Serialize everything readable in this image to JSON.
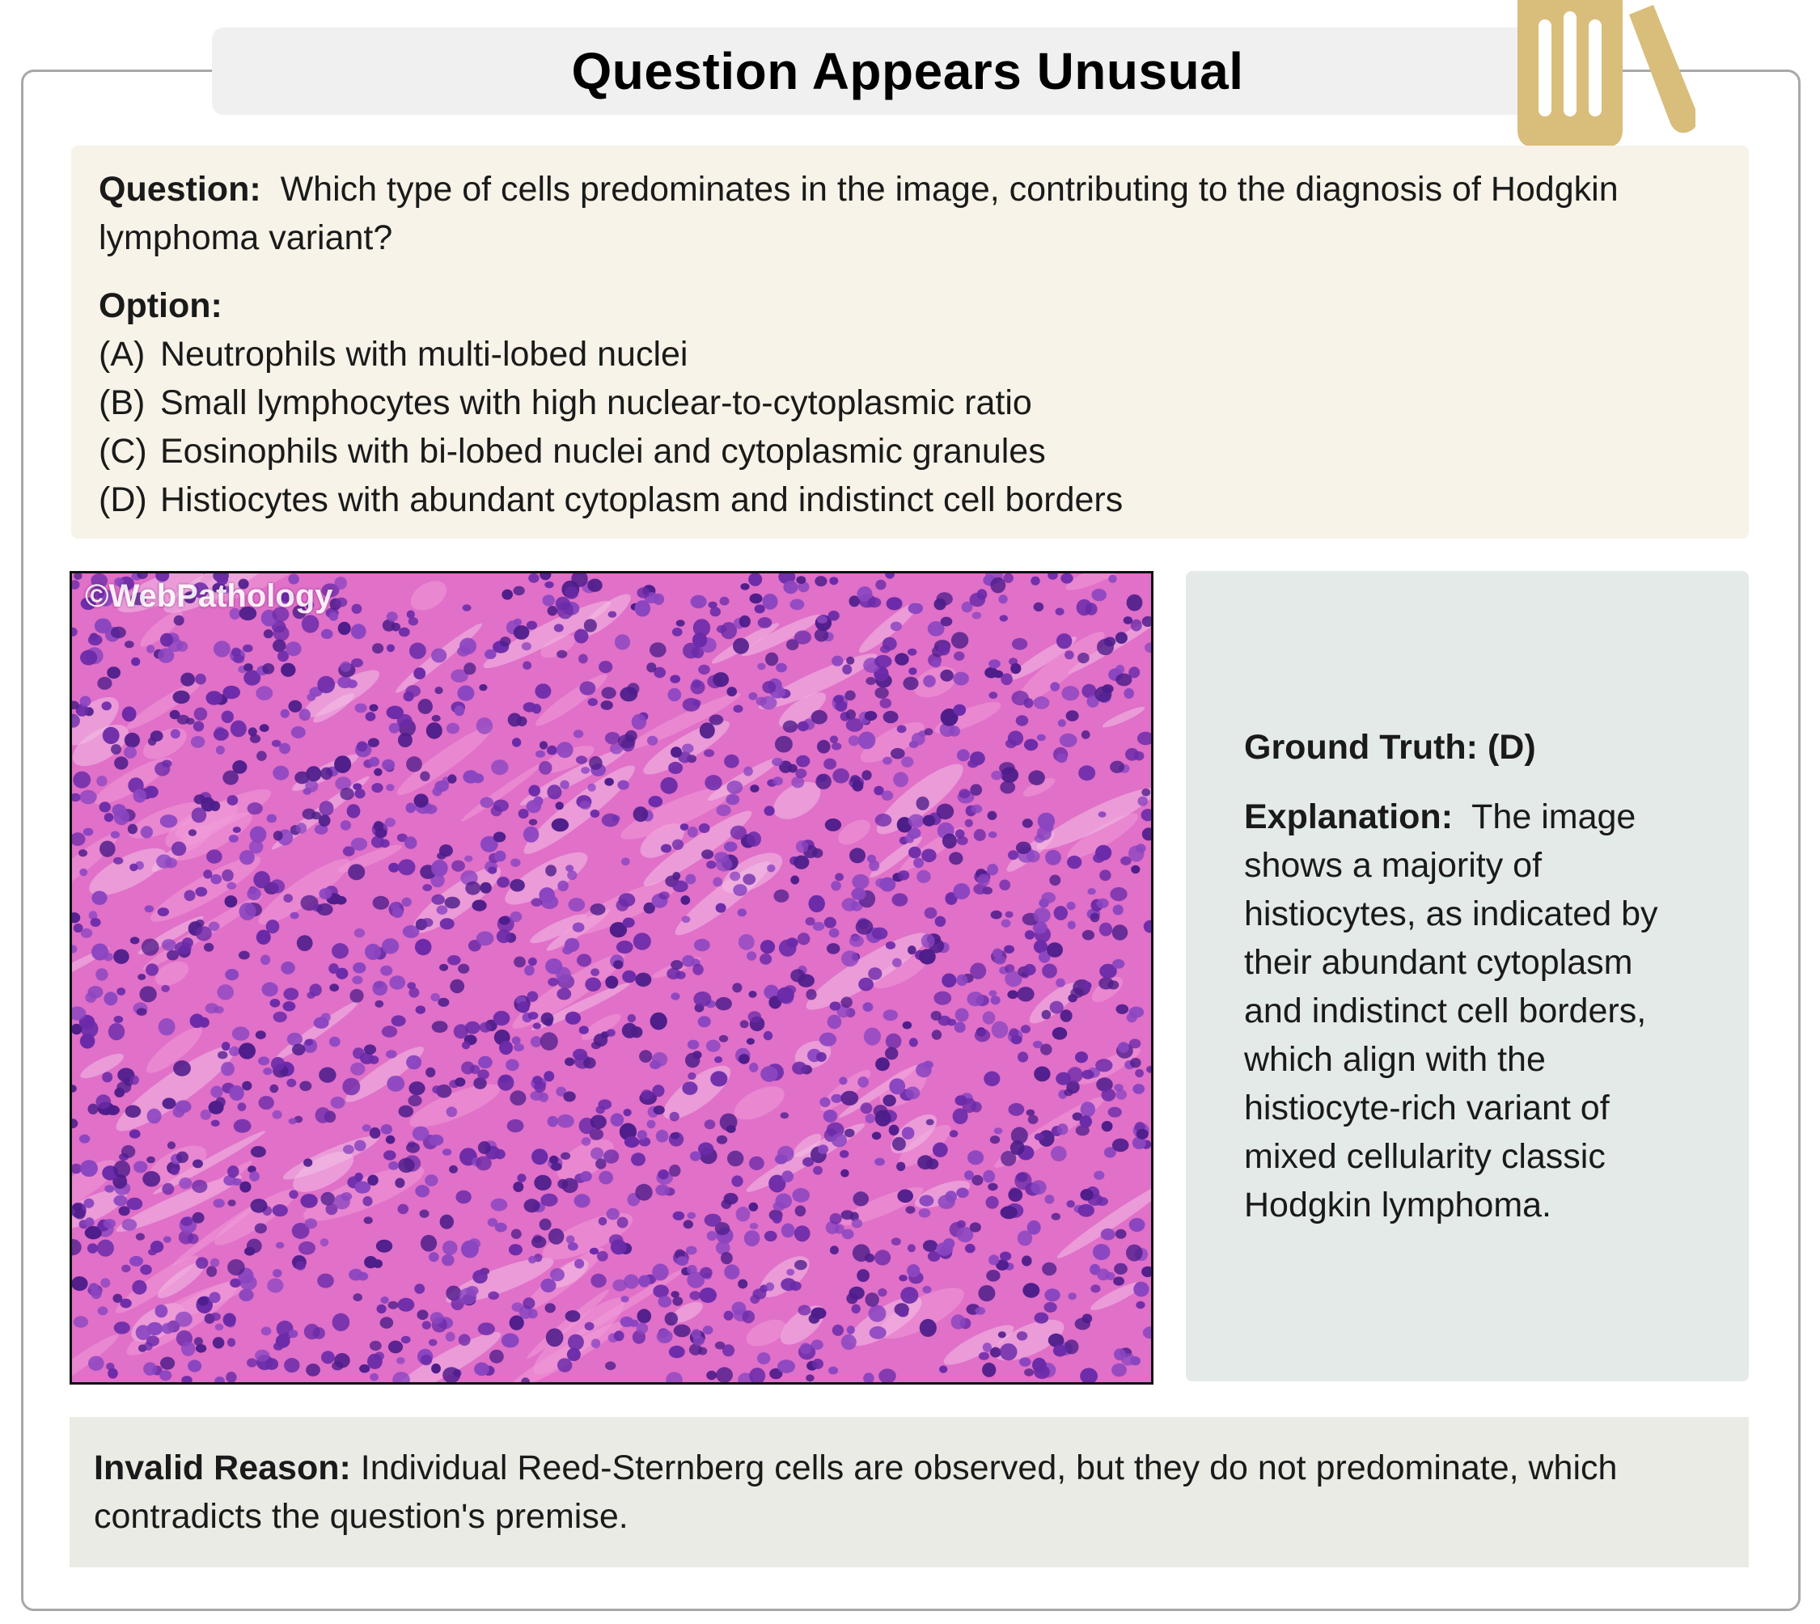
{
  "title": "Question Appears Unusual",
  "question": {
    "label": "Question:",
    "text": "Which type of cells predominates in the image, contributing to the diagnosis of Hodgkin lymphoma variant?"
  },
  "options": {
    "label": "Option:",
    "items": [
      {
        "letter": "(A)",
        "text": "Neutrophils with multi-lobed nuclei"
      },
      {
        "letter": "(B)",
        "text": "Small lymphocytes with high nuclear-to-cytoplasmic ratio"
      },
      {
        "letter": "(C)",
        "text": "Eosinophils with bi-lobed nuclei and cytoplasmic granules"
      },
      {
        "letter": "(D)",
        "text": "Histiocytes with abundant cytoplasm and indistinct cell borders"
      }
    ]
  },
  "image": {
    "watermark": "©WebPathology",
    "tissue_color": "#e070c8",
    "nucleus_color": "#6a2aa8"
  },
  "answer": {
    "ground_truth_label": "Ground Truth:",
    "ground_truth_value": "(D)",
    "explanation_label": "Explanation:",
    "explanation_text": "The image shows a majority of histiocytes, as indicated by their abundant cytoplasm and indistinct cell borders, which align with the histiocyte-rich variant of mixed cellularity classic Hodgkin lymphoma."
  },
  "invalid": {
    "label": "Invalid Reason:",
    "text": "Individual Reed-Sternberg cells are observed, but they do not predominate, which contradicts the question's premise."
  },
  "colors": {
    "frame_border": "#a8a8a8",
    "title_bg": "#f0f0f0",
    "question_bg": "#f7f3e8",
    "answer_bg": "#e4eae7",
    "invalid_bg": "#ebebe6",
    "logo": "#d9bd7a"
  },
  "logo_icon": "kitchen-utensils-icon"
}
